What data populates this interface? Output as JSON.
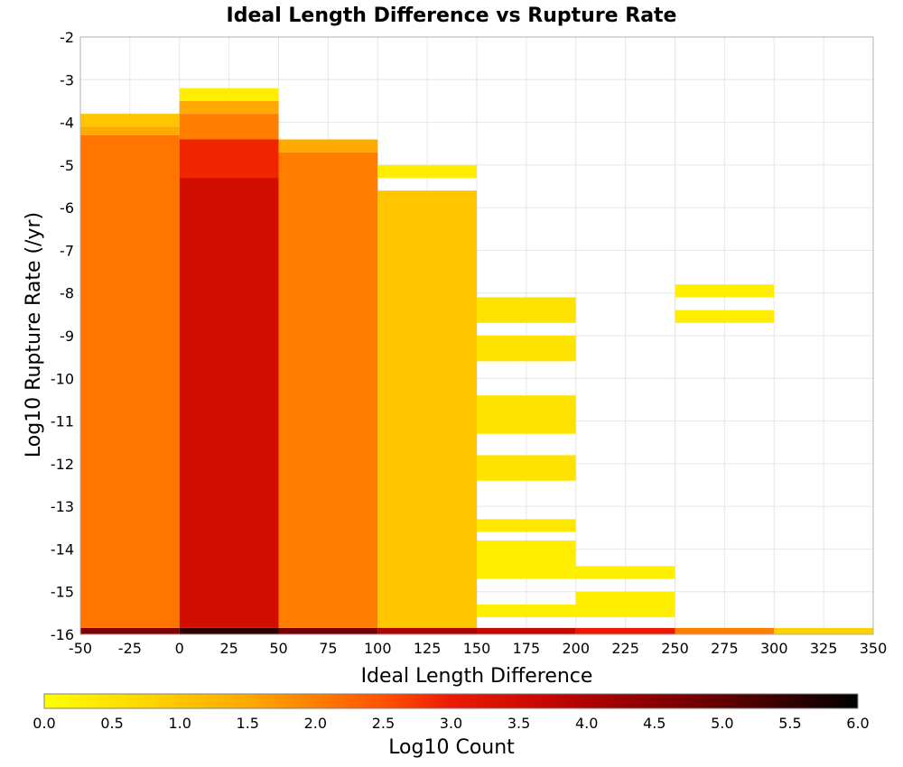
{
  "chart_data": {
    "type": "heatmap",
    "title": "Ideal Length Difference vs Rupture Rate",
    "xlabel": "Ideal Length Difference",
    "ylabel": "Log10 Rupture Rate (/yr)",
    "xlim": [
      -50,
      350
    ],
    "ylim": [
      -16,
      -2
    ],
    "x_ticks": [
      "-50",
      "-25",
      "0",
      "25",
      "50",
      "75",
      "100",
      "125",
      "150",
      "175",
      "200",
      "225",
      "250",
      "275",
      "300",
      "325",
      "350"
    ],
    "y_ticks": [
      "-16",
      "-15",
      "-14",
      "-13",
      "-12",
      "-11",
      "-10",
      "-9",
      "-8",
      "-7",
      "-6",
      "-5",
      "-4",
      "-3",
      "-2"
    ],
    "grid": true,
    "colorbar": {
      "label": "Log10 Count",
      "min": 0.0,
      "max": 6.0,
      "ticks": [
        "0.0",
        "0.5",
        "1.0",
        "1.5",
        "2.0",
        "2.5",
        "3.0",
        "3.5",
        "4.0",
        "4.5",
        "5.0",
        "5.5",
        "6.0"
      ],
      "colormap": "yellow-orange-red-black"
    },
    "bin_width_x": 50,
    "bin_height_y": 0.3,
    "columns": [
      {
        "x": [
          -50,
          0
        ],
        "bins": [
          {
            "y": [
              -16.0,
              -15.85
            ],
            "value": 4.6
          },
          {
            "y": [
              -15.85,
              -4.3
            ],
            "value": 2.1
          },
          {
            "y": [
              -4.3,
              -4.1
            ],
            "value": 1.5
          },
          {
            "y": [
              -4.1,
              -3.8
            ],
            "value": 1.0
          }
        ]
      },
      {
        "x": [
          0,
          50
        ],
        "bins": [
          {
            "y": [
              -16.0,
              -15.85
            ],
            "value": 5.5
          },
          {
            "y": [
              -15.85,
              -5.3
            ],
            "value": 3.5
          },
          {
            "y": [
              -5.3,
              -4.4
            ],
            "value": 2.9
          },
          {
            "y": [
              -4.4,
              -3.8
            ],
            "value": 2.0
          },
          {
            "y": [
              -3.8,
              -3.5
            ],
            "value": 1.5
          },
          {
            "y": [
              -3.5,
              -3.2
            ],
            "value": 0.3
          }
        ]
      },
      {
        "x": [
          50,
          100
        ],
        "bins": [
          {
            "y": [
              -16.0,
              -15.85
            ],
            "value": 4.7
          },
          {
            "y": [
              -15.85,
              -4.7
            ],
            "value": 2.0
          },
          {
            "y": [
              -4.7,
              -4.4
            ],
            "value": 1.5
          }
        ]
      },
      {
        "x": [
          100,
          150
        ],
        "bins": [
          {
            "y": [
              -16.0,
              -15.85
            ],
            "value": 4.0
          },
          {
            "y": [
              -15.85,
              -5.6
            ],
            "value": 1.0
          },
          {
            "y": [
              -5.3,
              -5.0
            ],
            "value": 0.3
          }
        ]
      },
      {
        "x": [
          150,
          200
        ],
        "bins": [
          {
            "y": [
              -16.0,
              -15.85
            ],
            "value": 3.7
          },
          {
            "y": [
              -15.6,
              -15.3
            ],
            "value": 0.3
          },
          {
            "y": [
              -14.7,
              -13.8
            ],
            "value": 0.3
          },
          {
            "y": [
              -13.6,
              -13.3
            ],
            "value": 0.4
          },
          {
            "y": [
              -12.4,
              -11.8
            ],
            "value": 0.5
          },
          {
            "y": [
              -11.3,
              -10.4
            ],
            "value": 0.5
          },
          {
            "y": [
              -9.6,
              -9.0
            ],
            "value": 0.5
          },
          {
            "y": [
              -8.7,
              -8.1
            ],
            "value": 0.5
          }
        ]
      },
      {
        "x": [
          200,
          250
        ],
        "bins": [
          {
            "y": [
              -16.0,
              -15.85
            ],
            "value": 3.0
          },
          {
            "y": [
              -15.6,
              -15.0
            ],
            "value": 0.3
          },
          {
            "y": [
              -14.7,
              -14.4
            ],
            "value": 0.3
          }
        ]
      },
      {
        "x": [
          250,
          300
        ],
        "bins": [
          {
            "y": [
              -16.0,
              -15.85
            ],
            "value": 2.0
          },
          {
            "y": [
              -8.7,
              -8.4
            ],
            "value": 0.3
          },
          {
            "y": [
              -8.1,
              -7.8
            ],
            "value": 0.3
          }
        ]
      },
      {
        "x": [
          300,
          350
        ],
        "bins": [
          {
            "y": [
              -16.0,
              -15.85
            ],
            "value": 0.8
          }
        ]
      }
    ]
  }
}
